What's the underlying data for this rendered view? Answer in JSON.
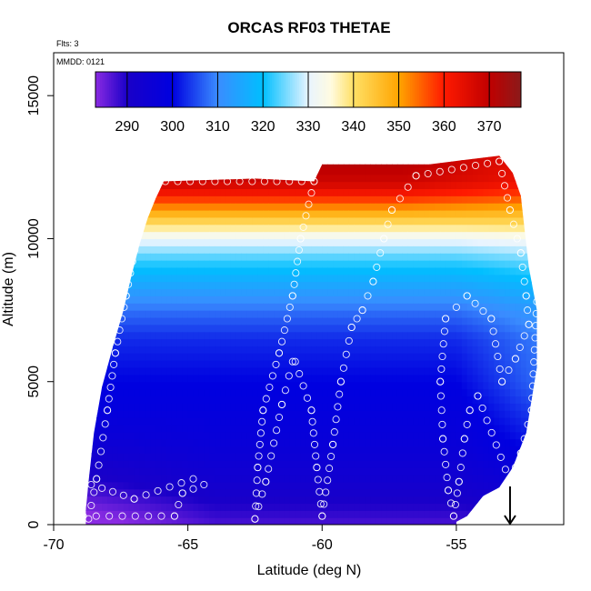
{
  "chart_data": {
    "type": "heatmap",
    "title": "ORCAS RF03 THETAE",
    "annotations": [
      "Flts: 3",
      "MMDD: 0121"
    ],
    "xlabel": "Latitude (deg N)",
    "ylabel": "Altitude (m)",
    "xlim": [
      -70,
      -51
    ],
    "ylim": [
      0,
      16500
    ],
    "x_ticks": [
      -70,
      -65,
      -60,
      -55
    ],
    "x_tick_labels": [
      "-70",
      "-65",
      "-60",
      "-55"
    ],
    "y_ticks": [
      0,
      5000,
      10000,
      15000
    ],
    "y_tick_labels": [
      "0",
      "5000",
      "10000",
      "15000"
    ],
    "grid": false,
    "colorbar": {
      "placement": "top-inset",
      "range": [
        283,
        377
      ],
      "ticks": [
        290,
        300,
        310,
        320,
        330,
        340,
        350,
        360,
        370
      ],
      "tick_labels": [
        "290",
        "300",
        "310",
        "320",
        "330",
        "340",
        "350",
        "360",
        "370"
      ],
      "color_stops": [
        {
          "value": 283,
          "color": "#8a2be2"
        },
        {
          "value": 290,
          "color": "#1a00c8"
        },
        {
          "value": 300,
          "color": "#0000e0"
        },
        {
          "value": 310,
          "color": "#3a8cff"
        },
        {
          "value": 320,
          "color": "#00bfff"
        },
        {
          "value": 330,
          "color": "#e8f4ff"
        },
        {
          "value": 335,
          "color": "#fffbe0"
        },
        {
          "value": 340,
          "color": "#ffe066"
        },
        {
          "value": 350,
          "color": "#ffa500"
        },
        {
          "value": 360,
          "color": "#ff1a00"
        },
        {
          "value": 370,
          "color": "#c00000"
        },
        {
          "value": 377,
          "color": "#8b1a1a"
        }
      ]
    },
    "domain_profile": [
      {
        "lat": -68.8,
        "top": 500
      },
      {
        "lat": -68.7,
        "top": 1500
      },
      {
        "lat": -68.5,
        "top": 3200
      },
      {
        "lat": -68.2,
        "top": 4800
      },
      {
        "lat": -67.8,
        "top": 6200
      },
      {
        "lat": -67.4,
        "top": 7500
      },
      {
        "lat": -67.1,
        "top": 8700
      },
      {
        "lat": -66.8,
        "top": 9800
      },
      {
        "lat": -66.5,
        "top": 10700
      },
      {
        "lat": -66.2,
        "top": 11400
      },
      {
        "lat": -65.9,
        "top": 12000
      },
      {
        "lat": -62.5,
        "top": 12100
      },
      {
        "lat": -60.3,
        "top": 12000
      },
      {
        "lat": -60.0,
        "top": 12600
      },
      {
        "lat": -56.0,
        "top": 12600
      },
      {
        "lat": -53.4,
        "top": 12900
      },
      {
        "lat": -52.9,
        "top": 12300
      },
      {
        "lat": -52.6,
        "top": 11500
      },
      {
        "lat": -52.3,
        "top": 9000
      },
      {
        "lat": -52.0,
        "top": 7500
      },
      {
        "lat": -52.0,
        "top": 5500
      },
      {
        "lat": -52.4,
        "top": 3200
      },
      {
        "lat": -52.9,
        "top": 2000
      },
      {
        "lat": -53.4,
        "top": 1300
      },
      {
        "lat": -54.0,
        "top": 1000
      },
      {
        "lat": -54.6,
        "top": 300
      },
      {
        "lat": -55.0,
        "top": 100
      }
    ],
    "theta_profile": [
      {
        "alt": 0,
        "value": 287
      },
      {
        "alt": 1500,
        "value": 293
      },
      {
        "alt": 3000,
        "value": 297
      },
      {
        "alt": 5000,
        "value": 300
      },
      {
        "alt": 6500,
        "value": 303
      },
      {
        "alt": 7500,
        "value": 308
      },
      {
        "alt": 8500,
        "value": 316
      },
      {
        "alt": 9300,
        "value": 323
      },
      {
        "alt": 10000,
        "value": 331
      },
      {
        "alt": 10500,
        "value": 340
      },
      {
        "alt": 11000,
        "value": 350
      },
      {
        "alt": 11500,
        "value": 360
      },
      {
        "alt": 12000,
        "value": 368
      },
      {
        "alt": 12800,
        "value": 372
      }
    ],
    "flight_track": {
      "legs": [
        [
          {
            "lat": -68.7,
            "alt": 200
          },
          {
            "lat": -68.4,
            "alt": 1600
          },
          {
            "lat": -68.0,
            "alt": 4000
          },
          {
            "lat": -67.7,
            "alt": 6000
          },
          {
            "lat": -67.3,
            "alt": 8000
          },
          {
            "lat": -66.9,
            "alt": 10000
          },
          {
            "lat": -66.6,
            "alt": 11300
          },
          {
            "lat": -66.3,
            "alt": 12000
          }
        ],
        [
          {
            "lat": -66.3,
            "alt": 12000
          },
          {
            "lat": -60.3,
            "alt": 12000
          }
        ],
        [
          {
            "lat": -60.3,
            "alt": 12000
          },
          {
            "lat": -60.8,
            "alt": 10000
          },
          {
            "lat": -61.1,
            "alt": 8000
          },
          {
            "lat": -61.6,
            "alt": 6000
          },
          {
            "lat": -62.2,
            "alt": 4000
          },
          {
            "lat": -62.4,
            "alt": 2000
          },
          {
            "lat": -62.5,
            "alt": 200
          }
        ],
        [
          {
            "lat": -62.5,
            "alt": 200
          },
          {
            "lat": -62.1,
            "alt": 1500
          },
          {
            "lat": -61.5,
            "alt": 4200
          },
          {
            "lat": -61.1,
            "alt": 5700
          }
        ],
        [
          {
            "lat": -61.0,
            "alt": 5700
          },
          {
            "lat": -60.4,
            "alt": 4000
          },
          {
            "lat": -60.2,
            "alt": 2000
          },
          {
            "lat": -60.0,
            "alt": 300
          }
        ],
        [
          {
            "lat": -60.0,
            "alt": 300
          },
          {
            "lat": -59.6,
            "alt": 2800
          },
          {
            "lat": -59.3,
            "alt": 5000
          },
          {
            "lat": -58.9,
            "alt": 6900
          },
          {
            "lat": -58.5,
            "alt": 7500
          },
          {
            "lat": -58.1,
            "alt": 8500
          },
          {
            "lat": -57.7,
            "alt": 10000
          },
          {
            "lat": -57.4,
            "alt": 11000
          },
          {
            "lat": -56.5,
            "alt": 12200
          }
        ],
        [
          {
            "lat": -56.5,
            "alt": 12200
          },
          {
            "lat": -53.4,
            "alt": 12700
          }
        ],
        [
          {
            "lat": -53.4,
            "alt": 12700
          },
          {
            "lat": -53.0,
            "alt": 11000
          },
          {
            "lat": -52.6,
            "alt": 9500
          },
          {
            "lat": -52.4,
            "alt": 8000
          },
          {
            "lat": -52.3,
            "alt": 7000
          },
          {
            "lat": -52.8,
            "alt": 5800
          },
          {
            "lat": -53.3,
            "alt": 5000
          },
          {
            "lat": -53.7,
            "alt": 7200
          },
          {
            "lat": -54.6,
            "alt": 8000
          },
          {
            "lat": -55.4,
            "alt": 7200
          }
        ],
        [
          {
            "lat": -55.4,
            "alt": 7200
          },
          {
            "lat": -55.6,
            "alt": 5000
          },
          {
            "lat": -55.5,
            "alt": 3000
          },
          {
            "lat": -55.3,
            "alt": 1200
          },
          {
            "lat": -55.1,
            "alt": 300
          }
        ],
        [
          {
            "lat": -55.1,
            "alt": 300
          },
          {
            "lat": -54.9,
            "alt": 1500
          },
          {
            "lat": -54.7,
            "alt": 3000
          },
          {
            "lat": -54.5,
            "alt": 4000
          },
          {
            "lat": -54.2,
            "alt": 4500
          },
          {
            "lat": -53.0,
            "alt": 1500
          },
          {
            "lat": -52.6,
            "alt": 2500
          },
          {
            "lat": -52.2,
            "alt": 4000
          },
          {
            "lat": -52.0,
            "alt": 7800
          }
        ],
        [
          {
            "lat": -68.9,
            "alt": 300
          },
          {
            "lat": -65.5,
            "alt": 300
          },
          {
            "lat": -65.2,
            "alt": 1100
          },
          {
            "lat": -64.4,
            "alt": 1400
          }
        ],
        [
          {
            "lat": -68.6,
            "alt": 1400
          },
          {
            "lat": -67.0,
            "alt": 900
          },
          {
            "lat": -64.8,
            "alt": 1600
          }
        ]
      ]
    },
    "arrow_marker": {
      "lat": -53.0,
      "alt_top": 700,
      "alt_bottom": 0
    }
  }
}
